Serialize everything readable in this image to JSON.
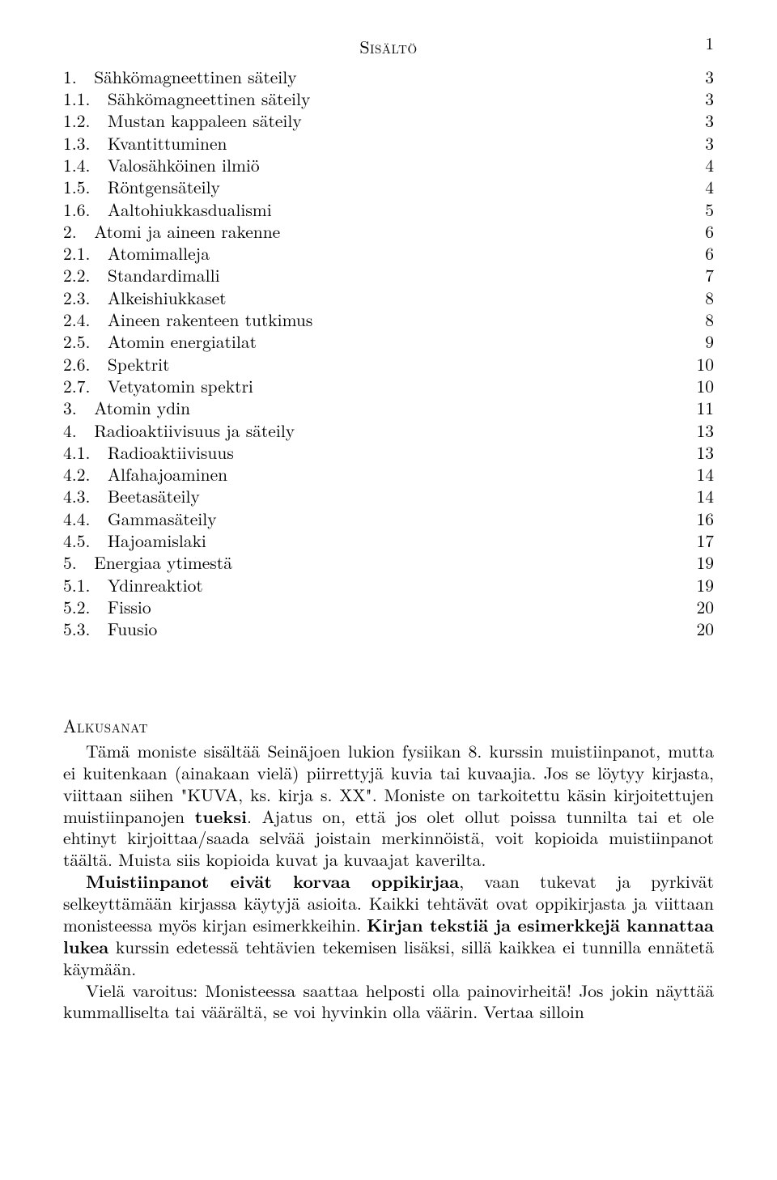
{
  "page_number": "1",
  "toc_title": "Sisältö",
  "toc": [
    {
      "label": "1.   Sähkömagneettinen säteily",
      "page": "3",
      "level": 0
    },
    {
      "label": "1.1.   Sähkömagneettinen säteily",
      "page": "3",
      "level": 0
    },
    {
      "label": "1.2.   Mustan kappaleen säteily",
      "page": "3",
      "level": 0
    },
    {
      "label": "1.3.   Kvantittuminen",
      "page": "3",
      "level": 0
    },
    {
      "label": "1.4.   Valosähköinen ilmiö",
      "page": "4",
      "level": 0
    },
    {
      "label": "1.5.   Röntgensäteily",
      "page": "4",
      "level": 0
    },
    {
      "label": "1.6.   Aaltohiukkasdualismi",
      "page": "5",
      "level": 0
    },
    {
      "label": "2.   Atomi ja aineen rakenne",
      "page": "6",
      "level": 0
    },
    {
      "label": "2.1.   Atomimalleja",
      "page": "6",
      "level": 0
    },
    {
      "label": "2.2.   Standardimalli",
      "page": "7",
      "level": 0
    },
    {
      "label": "2.3.   Alkeishiukkaset",
      "page": "8",
      "level": 0
    },
    {
      "label": "2.4.   Aineen rakenteen tutkimus",
      "page": "8",
      "level": 0
    },
    {
      "label": "2.5.   Atomin energiatilat",
      "page": "9",
      "level": 0
    },
    {
      "label": "2.6.   Spektrit",
      "page": "10",
      "level": 0
    },
    {
      "label": "2.7.   Vetyatomin spektri",
      "page": "10",
      "level": 0
    },
    {
      "label": "3.   Atomin ydin",
      "page": "11",
      "level": 0
    },
    {
      "label": "4.   Radioaktiivisuus ja säteily",
      "page": "13",
      "level": 0
    },
    {
      "label": "4.1.   Radioaktiivisuus",
      "page": "13",
      "level": 0
    },
    {
      "label": "4.2.   Alfahajoaminen",
      "page": "14",
      "level": 0
    },
    {
      "label": "4.3.   Beetasäteily",
      "page": "14",
      "level": 0
    },
    {
      "label": "4.4.   Gammasäteily",
      "page": "16",
      "level": 0
    },
    {
      "label": "4.5.   Hajoamislaki",
      "page": "17",
      "level": 0
    },
    {
      "label": "5.   Energiaa ytimestä",
      "page": "19",
      "level": 0
    },
    {
      "label": "5.1.   Ydinreaktiot",
      "page": "19",
      "level": 0
    },
    {
      "label": "5.2.   Fissio",
      "page": "20",
      "level": 0
    },
    {
      "label": "5.3.   Fuusio",
      "page": "20",
      "level": 0
    }
  ],
  "section_heading": "Alkusanat",
  "p1_a": "Tämä moniste sisältää Seinäjoen lukion fysiikan 8. kurssin muistiinpanot, mutta ei kuitenkaan (ainakaan vielä) piirrettyjä kuvia tai kuvaajia. Jos se löytyy kirjasta, viittaan siihen \"KUVA, ks. kirja s. XX\". Moniste on tarkoitettu käsin kirjoitettujen muistiinpanojen ",
  "p1_b": "tueksi",
  "p1_c": ". Ajatus on, että jos olet ollut poissa tunnilta tai et ole ehtinyt kirjoittaa/saada selvää joistain merkinnöistä, voit kopioida muistiinpanot täältä. Muista siis kopioida kuvat ja kuvaajat kaverilta.",
  "p2_a": "Muistiinpanot eivät korvaa oppikirjaa",
  "p2_b": ", vaan tukevat ja pyrkivät selkeyttämään kirjassa käytyjä asioita. Kaikki tehtävät ovat oppikirjasta ja viittaan monisteessa myös kirjan esimerkkeihin. ",
  "p2_c": "Kirjan tekstiä ja esimerkkejä kannattaa lukea",
  "p2_d": " kurssin edetessä tehtävien tekemisen lisäksi, sillä kaikkea ei tunnilla ennätetä käymään.",
  "p3": "Vielä varoitus: Monisteessa saattaa helposti olla painovirheitä! Jos jokin näyttää kummalliselta tai väärältä, se voi hyvinkin olla väärin. Vertaa silloin"
}
